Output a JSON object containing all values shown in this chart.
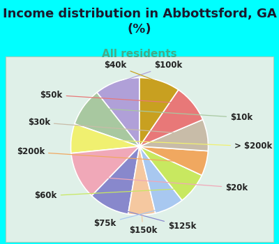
{
  "title": "Income distribution in Abbottsford, GA\n(%)",
  "subtitle": "All residents",
  "bg_color": "#00ffff",
  "box_color_outer": "#cce8d8",
  "box_color_inner": "#e8f5ee",
  "labels": [
    "$100k",
    "$10k",
    "> $200k",
    "$20k",
    "$125k",
    "$150k",
    "$75k",
    "$60k",
    "$200k",
    "$30k",
    "$50k",
    "$40k"
  ],
  "sizes": [
    10.0,
    8.5,
    6.5,
    10.5,
    9.0,
    6.0,
    6.5,
    7.0,
    5.5,
    7.0,
    8.5,
    9.0
  ],
  "colors": [
    "#b0a0d8",
    "#a8c8a0",
    "#f0f070",
    "#f0a8b8",
    "#8888cc",
    "#f5c8a0",
    "#a8c8f0",
    "#c8e860",
    "#f0a860",
    "#c8bca8",
    "#e87878",
    "#c8a020"
  ],
  "startangle": 90,
  "title_fontsize": 13,
  "subtitle_fontsize": 11,
  "label_fontsize": 8.5,
  "label_color": "#222222",
  "subtitle_color": "#44aa88"
}
